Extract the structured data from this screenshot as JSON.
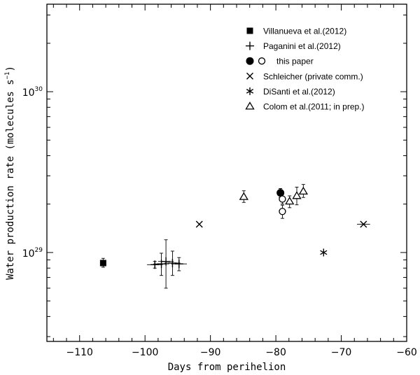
{
  "chart_data": {
    "type": "scatter",
    "xlabel": "Days from perihelion",
    "ylabel_main": "Water production rate (molecules s",
    "ylabel_sup": "−1",
    "ylabel_close": ")",
    "xlim": [
      -115,
      -60
    ],
    "ylim": [
      2.8e+28,
      3.5e+30
    ],
    "yscale": "log",
    "x_ticks": [
      -110,
      -100,
      -90,
      -80,
      -70,
      -60
    ],
    "x_tick_labels": [
      "−110",
      "−100",
      "−90",
      "−80",
      "−70",
      "−60"
    ],
    "y_tick_labels": [
      {
        "value": 1e+29,
        "base": "10",
        "exp": "29"
      },
      {
        "value": 1e+30,
        "base": "10",
        "exp": "30"
      }
    ],
    "grid": false,
    "legend_position": "top-right",
    "series": [
      {
        "name": "Villanueva et al.(2012)",
        "marker": "filled-square",
        "points": [
          {
            "x": -106.4,
            "y": 8.6e+28,
            "ylo": 8.1e+28,
            "yhi": 9.2e+28
          }
        ]
      },
      {
        "name": "Paganini et al.(2012)",
        "marker": "plus",
        "points": [
          {
            "x": -98.5,
            "y": 8.4e+28,
            "xerr": 1.2,
            "ylo": 8e+28,
            "yhi": 8.8e+28
          },
          {
            "x": -97.5,
            "y": 8.5e+28,
            "xerr": 1.2,
            "ylo": 7.2e+28,
            "yhi": 9.9e+28
          },
          {
            "x": -96.8,
            "y": 8.8e+28,
            "xerr": 1.2,
            "ylo": 6e+28,
            "yhi": 1.2e+29
          },
          {
            "x": -95.8,
            "y": 8.6e+28,
            "xerr": 1.2,
            "ylo": 7.2e+28,
            "yhi": 1.02e+29
          },
          {
            "x": -94.8,
            "y": 8.5e+28,
            "xerr": 1.2,
            "ylo": 7.7e+28,
            "yhi": 9.3e+28
          }
        ]
      },
      {
        "name": "this paper",
        "marker": "filled-circle",
        "marker2": "open-circle",
        "points": [
          {
            "x": -79.3,
            "y": 2.35e+29,
            "ylo": 2.2e+29,
            "yhi": 2.5e+29
          }
        ],
        "points2": [
          {
            "x": -79.0,
            "y": 2.15e+29,
            "ylo": 2e+29,
            "yhi": 2.3e+29
          },
          {
            "x": -79.0,
            "y": 1.8e+29,
            "ylo": 1.63e+29,
            "yhi": 1.97e+29
          }
        ]
      },
      {
        "name": "Schleicher (private comm.)",
        "marker": "cross",
        "points": [
          {
            "x": -91.7,
            "y": 1.5e+29
          },
          {
            "x": -66.6,
            "y": 1.5e+29,
            "xerr": 1.0
          }
        ]
      },
      {
        "name": "DiSanti et al.(2012)",
        "marker": "star",
        "points": [
          {
            "x": -72.7,
            "y": 1e+29
          }
        ]
      },
      {
        "name": "Colom et al.(2011; in prep.)",
        "marker": "open-triangle",
        "points": [
          {
            "x": -84.9,
            "y": 2.22e+29,
            "ylo": 2.05e+29,
            "yhi": 2.42e+29
          },
          {
            "x": -77.9,
            "y": 2.08e+29,
            "ylo": 1.9e+29,
            "yhi": 2.25e+29
          },
          {
            "x": -76.8,
            "y": 2.25e+29,
            "ylo": 1.98e+29,
            "yhi": 2.55e+29
          },
          {
            "x": -75.8,
            "y": 2.4e+29,
            "ylo": 2.2e+29,
            "yhi": 2.65e+29
          }
        ]
      }
    ]
  }
}
